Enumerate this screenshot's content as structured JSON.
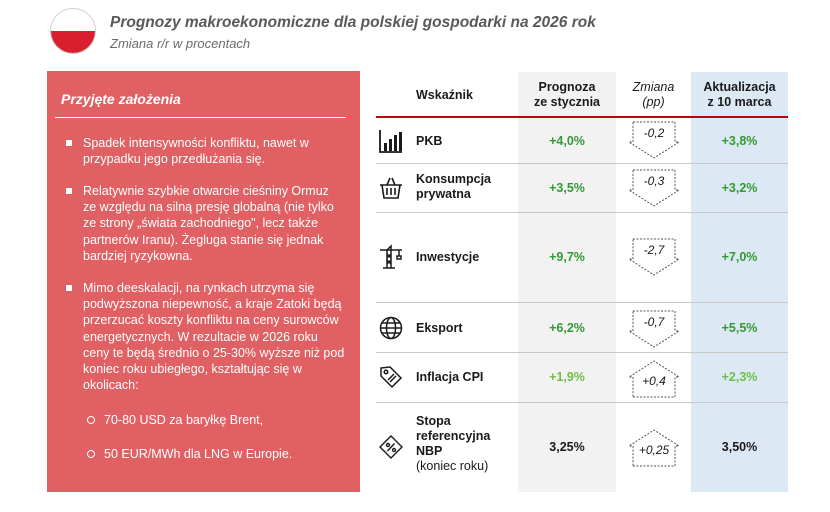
{
  "header": {
    "title": "Prognozy makroekonomiczne dla polskiej gospodarki na 2026 rok",
    "subtitle": "Zmiana r/r w procentach"
  },
  "assumptions": {
    "title": "Przyjęte założenia",
    "bullets": [
      "Spadek intensywności konfliktu, nawet w przypadku jego przedłużania się.",
      "Relatywnie szybkie otwarcie cieśniny Ormuz ze względu na silną presję globalną (nie tylko ze strony „świata zachodniego\", lecz także partnerów Iranu). Żegluga stanie się jednak bardziej ryzykowna.",
      "Mimo deeskalacji, na rynkach utrzyma się podwyższona niepewność, a kraje Zatoki będą przerzucać koszty konfliktu na ceny surowców energetycznych. W rezultacie w 2026 roku ceny te będą średnio o 25-30% wyższe niż pod koniec roku ubiegłego, kształtując się w okolicach:"
    ],
    "sub_items": [
      "70-80 USD za baryłkę Brent,",
      "50 EUR/MWh dla LNG w Europie."
    ]
  },
  "table": {
    "headers": {
      "indicator": "Wskaźnik",
      "forecast_line1": "Prognoza",
      "forecast_line2": "ze stycznia",
      "change_line1": "Zmiana",
      "change_line2": "(pp)",
      "update_line1": "Aktualizacja",
      "update_line2": "z 10 marca"
    },
    "rows": [
      {
        "icon": "bar-chart-icon",
        "label": "PKB",
        "forecast": "+4,0%",
        "change": "-0,2",
        "direction": "down",
        "update": "+3,8%"
      },
      {
        "icon": "shopping-basket-icon",
        "label_line1": "Konsumpcja",
        "label_line2": "prywatna",
        "forecast": "+3,5%",
        "change": "-0,3",
        "direction": "down",
        "update": "+3,2%"
      },
      {
        "icon": "crane-icon",
        "label": "Inwestycje",
        "forecast": "+9,7%",
        "change": "-2,7",
        "direction": "down",
        "update": "+7,0%"
      },
      {
        "icon": "globe-icon",
        "label": "Eksport",
        "forecast": "+6,2%",
        "change": "-0,7",
        "direction": "down",
        "update": "+5,5%"
      },
      {
        "icon": "price-tag-icon",
        "label": "Inflacja CPI",
        "forecast": "+1,9%",
        "change": "+0,4",
        "direction": "up",
        "update": "+2,3%"
      },
      {
        "icon": "percent-document-icon",
        "label_line1": "Stopa",
        "label_line2": "referencyjna",
        "label_line3": "NBP",
        "label_note": "(koniec roku)",
        "forecast": "3,25%",
        "change": "+0,25",
        "direction": "up",
        "update": "3,50%"
      }
    ]
  },
  "colors": {
    "panel": "#e06063",
    "accent_red": "#c0000b",
    "green": "#339933",
    "light_green": "#6cbf47",
    "forecast_column": "#f2f2f2",
    "update_column": "#dce9f5"
  }
}
